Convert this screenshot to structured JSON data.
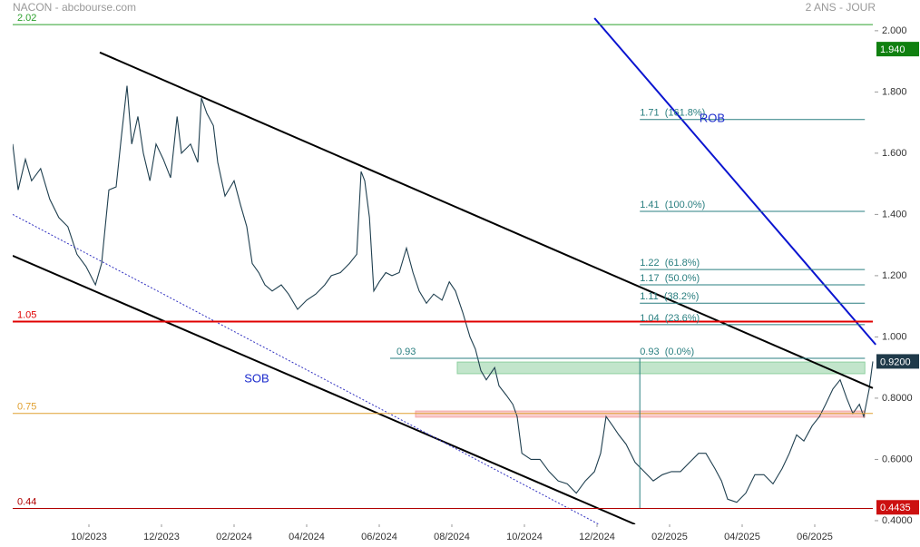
{
  "chart_data": {
    "type": "line",
    "title": "NACON - abcbourse.com",
    "subtitle": "2 ANS - JOUR",
    "xlim": [
      -2.1,
      21.7
    ],
    "ylim": [
      0.388,
      2.047
    ],
    "xticks": [
      {
        "value": 0,
        "label": "10/2023"
      },
      {
        "value": 2,
        "label": "12/2023"
      },
      {
        "value": 4,
        "label": "02/2024"
      },
      {
        "value": 6,
        "label": "04/2024"
      },
      {
        "value": 8,
        "label": "06/2024"
      },
      {
        "value": 10,
        "label": "08/2024"
      },
      {
        "value": 12,
        "label": "10/2024"
      },
      {
        "value": 14,
        "label": "12/2024"
      },
      {
        "value": 16,
        "label": "02/2025"
      },
      {
        "value": 18,
        "label": "04/2025"
      },
      {
        "value": 20,
        "label": "06/2025"
      }
    ],
    "yticks": [
      {
        "value": 2.0,
        "label": "2.000"
      },
      {
        "value": 1.8,
        "label": "1.800"
      },
      {
        "value": 1.6,
        "label": "1.600"
      },
      {
        "value": 1.4,
        "label": "1.400"
      },
      {
        "value": 1.2,
        "label": "1.200"
      },
      {
        "value": 1.0,
        "label": "1.000"
      },
      {
        "value": 0.8,
        "label": "0.8000"
      },
      {
        "value": 0.6,
        "label": "0.6000"
      },
      {
        "value": 0.4,
        "label": "0.4000"
      }
    ],
    "x": [
      -2.1,
      -1.95,
      -1.75,
      -1.58,
      -1.33,
      -1.08,
      -0.83,
      -0.58,
      -0.33,
      -0.08,
      0.18,
      0.35,
      0.55,
      0.75,
      0.9,
      1.05,
      1.18,
      1.35,
      1.5,
      1.68,
      1.85,
      2.05,
      2.25,
      2.43,
      2.55,
      2.8,
      3.0,
      3.1,
      3.25,
      3.43,
      3.55,
      3.75,
      4.0,
      4.18,
      4.35,
      4.5,
      4.68,
      4.85,
      5.05,
      5.3,
      5.5,
      5.75,
      6.0,
      6.25,
      6.5,
      6.68,
      6.93,
      7.18,
      7.38,
      7.5,
      7.6,
      7.73,
      7.85,
      8.0,
      8.18,
      8.35,
      8.55,
      8.75,
      8.93,
      9.1,
      9.3,
      9.5,
      9.73,
      9.93,
      10.1,
      10.3,
      10.5,
      10.65,
      10.8,
      10.95,
      11.18,
      11.3,
      11.5,
      11.68,
      11.8,
      11.93,
      12.18,
      12.43,
      12.68,
      12.93,
      13.18,
      13.43,
      13.68,
      13.93,
      14.1,
      14.25,
      14.43,
      14.6,
      14.8,
      15.05,
      15.3,
      15.55,
      15.8,
      16.05,
      16.3,
      16.55,
      16.8,
      17.0,
      17.25,
      17.43,
      17.6,
      17.85,
      18.1,
      18.35,
      18.6,
      18.85,
      19.1,
      19.3,
      19.5,
      19.7,
      19.93,
      20.13,
      20.3,
      20.5,
      20.7,
      20.88,
      21.05,
      21.23,
      21.35,
      21.5,
      21.6
    ],
    "series": [
      {
        "color": "#1f3f4f",
        "values": [
          1.63,
          1.48,
          1.58,
          1.51,
          1.55,
          1.45,
          1.39,
          1.36,
          1.27,
          1.23,
          1.17,
          1.24,
          1.48,
          1.49,
          1.66,
          1.82,
          1.63,
          1.72,
          1.6,
          1.51,
          1.63,
          1.58,
          1.52,
          1.72,
          1.6,
          1.63,
          1.57,
          1.78,
          1.73,
          1.69,
          1.57,
          1.46,
          1.51,
          1.43,
          1.36,
          1.24,
          1.21,
          1.17,
          1.15,
          1.17,
          1.14,
          1.09,
          1.12,
          1.14,
          1.17,
          1.2,
          1.21,
          1.24,
          1.27,
          1.54,
          1.51,
          1.39,
          1.15,
          1.18,
          1.21,
          1.2,
          1.21,
          1.29,
          1.21,
          1.15,
          1.11,
          1.14,
          1.12,
          1.18,
          1.15,
          1.08,
          1.0,
          0.96,
          0.89,
          0.86,
          0.9,
          0.84,
          0.81,
          0.78,
          0.74,
          0.62,
          0.6,
          0.6,
          0.56,
          0.53,
          0.52,
          0.49,
          0.53,
          0.56,
          0.62,
          0.74,
          0.71,
          0.68,
          0.65,
          0.59,
          0.56,
          0.53,
          0.55,
          0.56,
          0.56,
          0.59,
          0.62,
          0.62,
          0.57,
          0.53,
          0.47,
          0.46,
          0.49,
          0.55,
          0.55,
          0.52,
          0.57,
          0.62,
          0.68,
          0.66,
          0.71,
          0.74,
          0.78,
          0.83,
          0.86,
          0.8,
          0.75,
          0.78,
          0.74,
          0.83,
          0.92
        ]
      }
    ],
    "levels": [
      {
        "value": 2.02,
        "color": "#2ca02c"
      },
      {
        "value": 1.05,
        "color": "#e00000"
      },
      {
        "value": 0.75,
        "color": "#e0a030"
      },
      {
        "value": 0.44,
        "color": "#b00000"
      }
    ],
    "fibonacci": {
      "x": [
        15.18,
        21.38
      ],
      "color": "#2a7f80",
      "levels": [
        {
          "value": 1.71,
          "label": "1.71  (161.8%)"
        },
        {
          "value": 1.41,
          "label": "1.41  (100.0%)"
        },
        {
          "value": 1.22,
          "label": "1.22  (61.8%)"
        },
        {
          "value": 1.17,
          "label": "1.17  (50.0%)"
        },
        {
          "value": 1.11,
          "label": "1.11  (38.2%)"
        },
        {
          "value": 1.04,
          "label": "1.04  (23.6%)"
        },
        {
          "value": 0.93,
          "label": "0.93  (0.0%)"
        }
      ]
    },
    "entry_level": {
      "value": 0.93,
      "x": [
        8.3,
        21.38
      ]
    },
    "zones": [
      {
        "x": [
          10.15,
          21.38
        ],
        "values": [
          0.88,
          0.918
        ],
        "color": "#8fd0a0"
      },
      {
        "x": [
          9.0,
          21.38
        ],
        "values": [
          0.738,
          0.758
        ],
        "color": "#f4a6a6"
      }
    ],
    "trendlines": [
      {
        "x": [
          0.3,
          21.6
        ],
        "values": [
          1.929,
          0.833
        ],
        "color": "#000000",
        "width": 2
      },
      {
        "x": [
          -2.1,
          15.05
        ],
        "values": [
          1.265,
          0.388
        ],
        "color": "#000000",
        "width": 2
      },
      {
        "x": [
          -2.1,
          14.05
        ],
        "values": [
          1.4,
          0.388
        ],
        "color": "#3030c0",
        "width": 1,
        "dash": true
      },
      {
        "x": [
          13.93,
          21.68
        ],
        "values": [
          2.041,
          0.975
        ],
        "color": "#0a14d0",
        "width": 2
      }
    ],
    "annotations": [
      "SOB",
      "ROB"
    ],
    "price_tags": [
      {
        "value": 1.94,
        "label": "1.940",
        "color": "#108010"
      },
      {
        "value": 0.92,
        "label": "0.9200",
        "color": "#1f3a4a"
      },
      {
        "value": 0.4435,
        "label": "0.4435",
        "color": "#cc1010"
      }
    ]
  }
}
